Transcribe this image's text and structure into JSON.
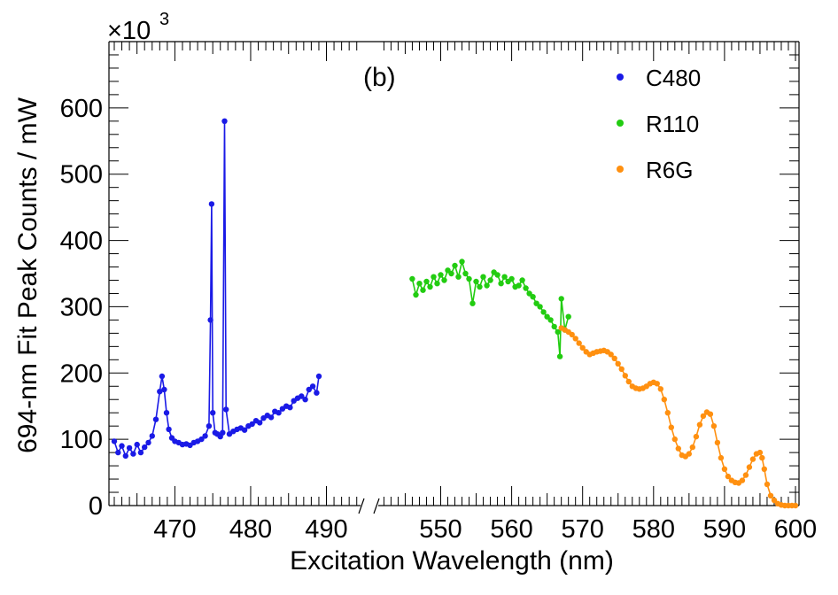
{
  "chart_data": {
    "type": "scatter",
    "panel_label": "(b)",
    "xlabel": "Excitation Wavelength (nm)",
    "ylabel": "694-nm Fit Peak Counts / mW",
    "y_multiplier": "×10",
    "y_multiplier_exp": "3",
    "ylim": [
      0,
      700
    ],
    "y_ticks": [
      "0",
      "100",
      "200",
      "300",
      "400",
      "500",
      "600"
    ],
    "broken_x_axis": true,
    "x_segments": [
      {
        "xlim": [
          461.3,
          494.5
        ],
        "ticks": [
          "470",
          "480",
          "490"
        ]
      },
      {
        "xlim": [
          541.2,
          600.5
        ],
        "ticks": [
          "550",
          "560",
          "570",
          "580",
          "590",
          "600"
        ]
      }
    ],
    "legend_position": "top-right",
    "grid": false,
    "series": [
      {
        "name": "C480",
        "color": "#1a1ae6",
        "segment": 0,
        "x": [
          462.0,
          462.5,
          463.0,
          463.5,
          464.0,
          464.5,
          465.0,
          465.5,
          466.0,
          466.5,
          467.0,
          467.5,
          468.0,
          468.3,
          468.6,
          468.9,
          469.2,
          469.6,
          470.0,
          470.5,
          471.0,
          471.5,
          472.0,
          472.5,
          473.0,
          473.5,
          474.0,
          474.5,
          474.7,
          474.85,
          475.0,
          475.3,
          475.6,
          476.0,
          476.3,
          476.55,
          476.75,
          477.2,
          477.7,
          478.2,
          478.7,
          479.2,
          479.7,
          480.2,
          480.7,
          481.2,
          481.7,
          482.2,
          482.7,
          483.2,
          483.7,
          484.2,
          484.7,
          485.2,
          485.7,
          486.2,
          486.7,
          487.2,
          487.7,
          488.2,
          488.7,
          489.0
        ],
        "y": [
          97,
          80,
          90,
          75,
          87,
          78,
          92,
          80,
          88,
          95,
          105,
          130,
          172,
          195,
          175,
          140,
          115,
          102,
          97,
          95,
          92,
          93,
          91,
          95,
          97,
          100,
          105,
          120,
          280,
          455,
          140,
          110,
          108,
          104,
          110,
          580,
          145,
          108,
          112,
          115,
          117,
          114,
          120,
          123,
          128,
          125,
          132,
          136,
          133,
          142,
          140,
          146,
          150,
          148,
          158,
          162,
          165,
          160,
          175,
          180,
          170,
          195
        ]
      },
      {
        "name": "R110",
        "color": "#22cc11",
        "segment": 1,
        "x": [
          546.0,
          546.5,
          547.0,
          547.5,
          548.0,
          548.5,
          549.0,
          549.5,
          550.0,
          550.5,
          551.0,
          551.5,
          552.0,
          552.5,
          553.0,
          553.5,
          554.0,
          554.5,
          555.0,
          555.5,
          556.0,
          556.5,
          557.0,
          557.5,
          558.0,
          558.5,
          559.0,
          559.5,
          560.0,
          560.5,
          561.0,
          561.5,
          562.0,
          562.5,
          563.0,
          563.5,
          564.0,
          564.5,
          565.0,
          565.5,
          566.0,
          566.5,
          566.8,
          567.0,
          567.5,
          568.0
        ],
        "y": [
          342,
          318,
          335,
          325,
          338,
          330,
          345,
          335,
          348,
          340,
          355,
          350,
          362,
          345,
          368,
          350,
          342,
          305,
          338,
          330,
          345,
          332,
          340,
          352,
          348,
          335,
          345,
          338,
          342,
          330,
          332,
          340,
          328,
          320,
          315,
          305,
          300,
          292,
          285,
          280,
          270,
          262,
          225,
          312,
          265,
          285
        ]
      },
      {
        "name": "R6G",
        "color": "#ff9010",
        "segment": 1,
        "x": [
          567.0,
          567.5,
          568.0,
          568.5,
          569.0,
          569.5,
          570.0,
          570.5,
          571.0,
          571.5,
          572.0,
          572.5,
          573.0,
          573.5,
          574.0,
          574.5,
          575.0,
          575.5,
          576.0,
          576.5,
          577.0,
          577.5,
          578.0,
          578.5,
          579.0,
          579.5,
          580.0,
          580.5,
          581.0,
          581.5,
          582.0,
          582.5,
          583.0,
          583.5,
          584.0,
          584.5,
          585.0,
          585.5,
          586.0,
          586.5,
          587.0,
          587.5,
          588.0,
          588.5,
          589.0,
          589.5,
          590.0,
          590.5,
          591.0,
          591.5,
          592.0,
          592.5,
          593.0,
          593.5,
          594.0,
          594.5,
          595.0,
          595.3,
          595.6,
          596.0,
          596.5,
          597.0,
          597.5,
          598.0,
          598.5,
          599.0,
          599.5,
          600.0
        ],
        "y": [
          268,
          265,
          262,
          258,
          252,
          245,
          238,
          232,
          228,
          230,
          232,
          233,
          234,
          232,
          228,
          222,
          214,
          206,
          196,
          187,
          180,
          177,
          176,
          177,
          180,
          184,
          186,
          184,
          176,
          160,
          140,
          118,
          100,
          86,
          76,
          74,
          78,
          88,
          104,
          122,
          135,
          141,
          138,
          120,
          95,
          72,
          55,
          44,
          38,
          35,
          34,
          38,
          46,
          58,
          70,
          78,
          80,
          72,
          55,
          32,
          15,
          8,
          3,
          1,
          0,
          0,
          0,
          0
        ]
      }
    ]
  }
}
